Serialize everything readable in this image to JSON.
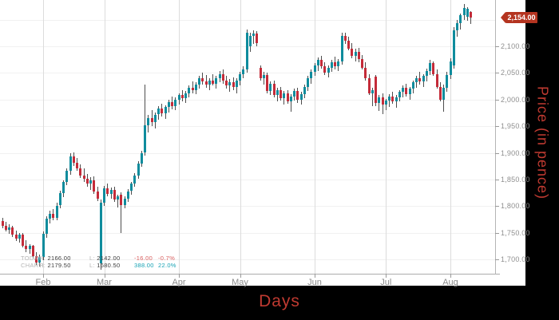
{
  "colors": {
    "up": "#0f8c9d",
    "down": "#c42b39",
    "wick": "#4d4d4d",
    "badge_bg": "#b43420",
    "axis_title": "#c03a31",
    "legend_down": "#d95f5f",
    "legend_up": "#17a2b4"
  },
  "legend": {
    "rows": [
      {
        "name": "TODAY:",
        "h_label": "H:",
        "h_value": "2166.00",
        "l_label": "L:",
        "l_value": "2142.00",
        "change": "-16.00",
        "pct": "-0.7%",
        "dir": "down"
      },
      {
        "name": "CHART:",
        "h_label": "H:",
        "h_value": "2179.50",
        "l_label": "L:",
        "l_value": "1680.50",
        "change": "388.00",
        "pct": "22.0%",
        "dir": "up"
      }
    ]
  },
  "chart_data": {
    "type": "candlestick",
    "xlabel": "Days",
    "ylabel": "Price (in pence)",
    "last_close": 2154,
    "last_price_label": "2,154.00",
    "ylim": [
      1670,
      2187
    ],
    "grid_prices": [
      1700,
      1750,
      1800,
      1850,
      1900,
      1950,
      2000,
      2050,
      2100,
      2150
    ],
    "y_ticks": [
      {
        "v": 2100,
        "label": "2,100.00"
      },
      {
        "v": 2050,
        "label": "2,050.00"
      },
      {
        "v": 2000,
        "label": "2,000.00"
      },
      {
        "v": 1950,
        "label": "1,950.00"
      },
      {
        "v": 1900,
        "label": "1,900.00"
      },
      {
        "v": 1850,
        "label": "1,850.00"
      },
      {
        "v": 1800,
        "label": "1,800.00"
      },
      {
        "v": 1750,
        "label": "1,750.00"
      },
      {
        "v": 1700,
        "label": "1,700.00"
      }
    ],
    "months": [
      {
        "label": "Feb",
        "index": 12
      },
      {
        "label": "Mar",
        "index": 30
      },
      {
        "label": "Apr",
        "index": 52
      },
      {
        "label": "May",
        "index": 70
      },
      {
        "label": "Jun",
        "index": 92
      },
      {
        "label": "Jul",
        "index": 113
      },
      {
        "label": "Aug",
        "index": 132
      }
    ],
    "candles": [
      [
        1772,
        1778,
        1758,
        1763
      ],
      [
        1763,
        1770,
        1752,
        1756
      ],
      [
        1756,
        1766,
        1748,
        1760
      ],
      [
        1760,
        1763,
        1742,
        1746
      ],
      [
        1746,
        1754,
        1735,
        1739
      ],
      [
        1739,
        1750,
        1732,
        1746
      ],
      [
        1746,
        1749,
        1722,
        1726
      ],
      [
        1726,
        1736,
        1714,
        1719
      ],
      [
        1719,
        1729,
        1710,
        1725
      ],
      [
        1725,
        1727,
        1702,
        1706
      ],
      [
        1706,
        1713,
        1690,
        1694
      ],
      [
        1694,
        1709,
        1686,
        1705
      ],
      [
        1705,
        1752,
        1698,
        1748
      ],
      [
        1748,
        1781,
        1741,
        1776
      ],
      [
        1776,
        1791,
        1767,
        1786
      ],
      [
        1786,
        1794,
        1773,
        1778
      ],
      [
        1778,
        1806,
        1774,
        1801
      ],
      [
        1801,
        1829,
        1796,
        1824
      ],
      [
        1824,
        1849,
        1817,
        1845
      ],
      [
        1845,
        1871,
        1839,
        1866
      ],
      [
        1866,
        1900,
        1859,
        1894
      ],
      [
        1894,
        1901,
        1876,
        1882
      ],
      [
        1882,
        1891,
        1866,
        1871
      ],
      [
        1871,
        1879,
        1853,
        1858
      ],
      [
        1858,
        1871,
        1846,
        1851
      ],
      [
        1851,
        1860,
        1836,
        1842
      ],
      [
        1842,
        1854,
        1830,
        1849
      ],
      [
        1849,
        1856,
        1823,
        1828
      ],
      [
        1828,
        1836,
        1810,
        1814
      ],
      [
        1692,
        1812,
        1680.5,
        1806
      ],
      [
        1806,
        1838,
        1800,
        1833
      ],
      [
        1833,
        1842,
        1818,
        1823
      ],
      [
        1823,
        1835,
        1814,
        1830
      ],
      [
        1830,
        1836,
        1808,
        1812
      ],
      [
        1812,
        1822,
        1798,
        1818
      ],
      [
        1822,
        1826,
        1750,
        1802
      ],
      [
        1802,
        1818,
        1795,
        1814
      ],
      [
        1814,
        1832,
        1808,
        1828
      ],
      [
        1828,
        1846,
        1822,
        1842
      ],
      [
        1842,
        1862,
        1836,
        1858
      ],
      [
        1858,
        1884,
        1852,
        1880
      ],
      [
        1880,
        1904,
        1874,
        1900
      ],
      [
        1900,
        2028,
        1894,
        1952
      ],
      [
        1952,
        1972,
        1938,
        1966
      ],
      [
        1966,
        1980,
        1950,
        1958
      ],
      [
        1958,
        1976,
        1946,
        1972
      ],
      [
        1972,
        1988,
        1962,
        1983
      ],
      [
        1983,
        1992,
        1968,
        1974
      ],
      [
        1974,
        1990,
        1964,
        1986
      ],
      [
        1986,
        2000,
        1976,
        1996
      ],
      [
        1996,
        2006,
        1982,
        1988
      ],
      [
        1988,
        2004,
        1980,
        2000
      ],
      [
        2000,
        2012,
        1990,
        2008
      ],
      [
        2008,
        2018,
        1996,
        2002
      ],
      [
        2002,
        2016,
        1994,
        2012
      ],
      [
        2012,
        2026,
        2004,
        2022
      ],
      [
        2022,
        2034,
        2012,
        2018
      ],
      [
        2018,
        2032,
        2010,
        2028
      ],
      [
        2028,
        2044,
        2020,
        2040
      ],
      [
        2040,
        2050,
        2028,
        2034
      ],
      [
        2034,
        2046,
        2022,
        2028
      ],
      [
        2028,
        2040,
        2018,
        2036
      ],
      [
        2036,
        2048,
        2026,
        2030
      ],
      [
        2030,
        2044,
        2020,
        2040
      ],
      [
        2040,
        2054,
        2032,
        2048
      ],
      [
        2048,
        2056,
        2030,
        2036
      ],
      [
        2036,
        2044,
        2020,
        2026
      ],
      [
        2026,
        2038,
        2014,
        2032
      ],
      [
        2032,
        2042,
        2018,
        2024
      ],
      [
        2024,
        2040,
        2012,
        2035
      ],
      [
        2035,
        2052,
        2026,
        2048
      ],
      [
        2048,
        2062,
        2040,
        2056
      ],
      [
        2056,
        2132,
        2050,
        2126
      ],
      [
        2100,
        2126,
        2090,
        2120
      ],
      [
        2120,
        2130,
        2104,
        2124
      ],
      [
        2124,
        2128,
        2100,
        2106
      ],
      [
        2060,
        2064,
        2036,
        2040
      ],
      [
        2040,
        2052,
        2028,
        2046
      ],
      [
        2046,
        2050,
        2012,
        2016
      ],
      [
        2016,
        2034,
        2008,
        2030
      ],
      [
        2030,
        2036,
        2004,
        2008
      ],
      [
        2008,
        2022,
        1996,
        2018
      ],
      [
        2018,
        2024,
        1998,
        2002
      ],
      [
        2002,
        2016,
        1990,
        2012
      ],
      [
        2012,
        2018,
        1992,
        1996
      ],
      [
        1996,
        2010,
        1977,
        2006
      ],
      [
        2006,
        2020,
        1998,
        2016
      ],
      [
        2016,
        2022,
        1994,
        1999
      ],
      [
        1999,
        2014,
        1990,
        2010
      ],
      [
        2010,
        2028,
        2002,
        2024
      ],
      [
        2024,
        2044,
        2016,
        2040
      ],
      [
        2040,
        2056,
        2030,
        2052
      ],
      [
        2052,
        2068,
        2044,
        2064
      ],
      [
        2064,
        2079,
        2054,
        2075
      ],
      [
        2075,
        2082,
        2058,
        2062
      ],
      [
        2062,
        2070,
        2046,
        2050
      ],
      [
        2050,
        2064,
        2042,
        2060
      ],
      [
        2060,
        2074,
        2052,
        2070
      ],
      [
        2070,
        2080,
        2056,
        2062
      ],
      [
        2062,
        2076,
        2054,
        2072
      ],
      [
        2072,
        2125,
        2066,
        2120
      ],
      [
        2120,
        2126,
        2104,
        2110
      ],
      [
        2110,
        2118,
        2092,
        2096
      ],
      [
        2096,
        2106,
        2078,
        2082
      ],
      [
        2082,
        2096,
        2072,
        2090
      ],
      [
        2090,
        2097,
        2070,
        2076
      ],
      [
        2076,
        2084,
        2056,
        2060
      ],
      [
        2060,
        2070,
        2036,
        2040
      ],
      [
        2040,
        2048,
        2008,
        2012
      ],
      [
        2012,
        2022,
        1988,
        2018
      ],
      [
        2043,
        2046,
        1988,
        1993
      ],
      [
        1993,
        2008,
        1978,
        2004
      ],
      [
        2004,
        2012,
        1972,
        1990
      ],
      [
        1990,
        2002,
        1980,
        1998
      ],
      [
        1998,
        2010,
        1986,
        2006
      ],
      [
        2006,
        2014,
        1992,
        1996
      ],
      [
        1996,
        2008,
        1984,
        2004
      ],
      [
        2004,
        2018,
        1996,
        2014
      ],
      [
        2014,
        2026,
        2004,
        2022
      ],
      [
        2022,
        2030,
        2006,
        2010
      ],
      [
        2010,
        2024,
        2000,
        2020
      ],
      [
        2020,
        2036,
        2012,
        2032
      ],
      [
        2032,
        2044,
        2022,
        2040
      ],
      [
        2040,
        2052,
        2028,
        2034
      ],
      [
        2034,
        2048,
        2024,
        2044
      ],
      [
        2044,
        2058,
        2034,
        2054
      ],
      [
        2054,
        2075,
        2046,
        2068
      ],
      [
        2068,
        2072,
        2044,
        2048
      ],
      [
        2048,
        2056,
        2020,
        2024
      ],
      [
        2024,
        2032,
        1996,
        2000
      ],
      [
        2000,
        2028,
        1977,
        2022
      ],
      [
        2022,
        2052,
        2014,
        2046
      ],
      [
        2046,
        2078,
        2038,
        2072
      ],
      [
        2064,
        2136,
        2058,
        2130
      ],
      [
        2130,
        2150,
        2118,
        2144
      ],
      [
        2144,
        2162,
        2132,
        2158
      ],
      [
        2158,
        2179.5,
        2150,
        2172
      ],
      [
        2156,
        2174,
        2148,
        2170
      ],
      [
        2164,
        2166,
        2142,
        2154
      ]
    ]
  }
}
